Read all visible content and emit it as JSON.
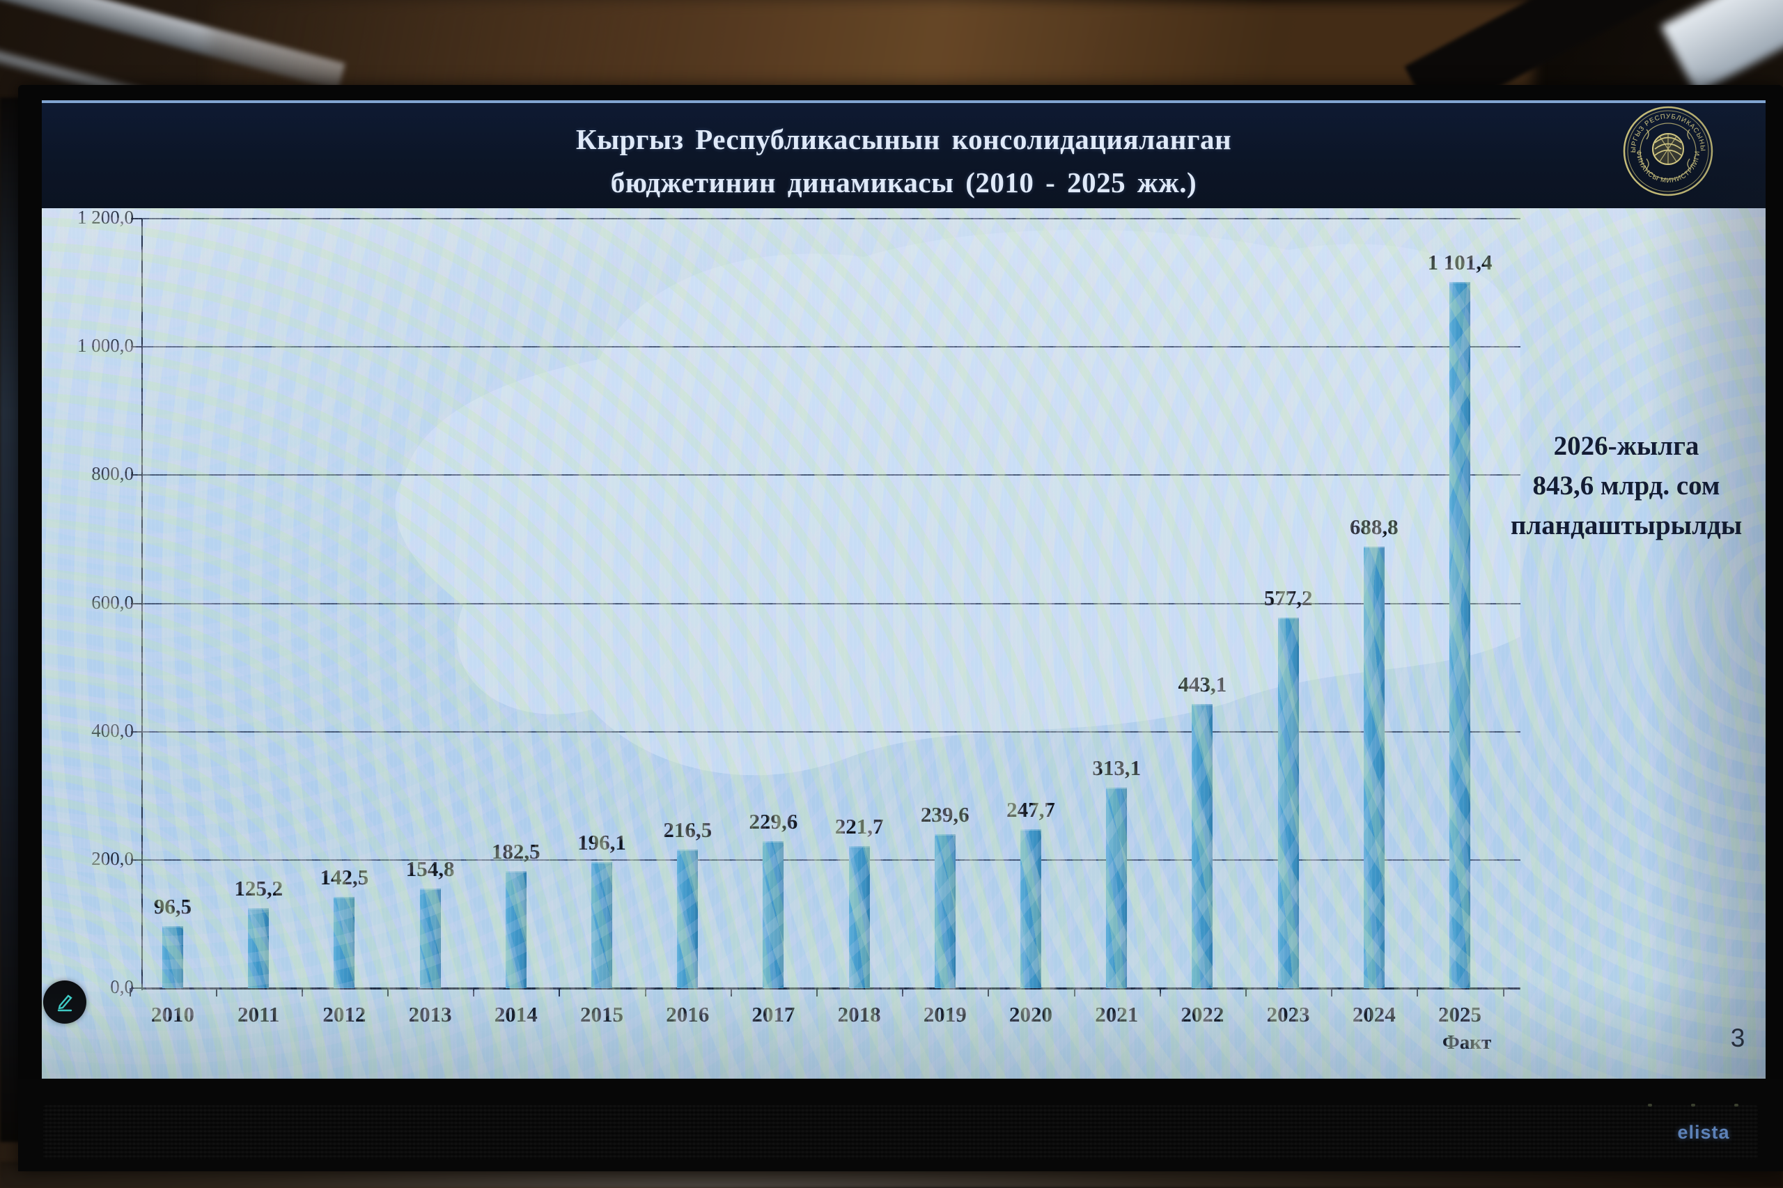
{
  "slide": {
    "title": {
      "line1": "Кыргыз Республикасынын консолидацияланган",
      "line2": "бюджетинин динамикасы (2010 - 2025 жж.)"
    },
    "logo": {
      "text_top": "КЫРГЫЗ РЕСПУБЛИКАСЫНЫН",
      "text_bottom": "ФИНАНСЫ МИНИСТРЛИГИ"
    },
    "annotation": {
      "line1": "2026-жылга",
      "line2": "843,6 млрд. сом",
      "line3": "пландаштырылды"
    },
    "page_number": "3"
  },
  "tv": {
    "brand": "elista"
  },
  "icons": {
    "pencil": "pencil-annotate-icon"
  },
  "colors": {
    "bar": "#3f97c9",
    "bar_edge_light": "#5caeda",
    "bar_edge_dark": "#2e7cab",
    "title_band": "#0c1526",
    "title_text": "#dfe9f8",
    "grid": "#263654",
    "label_text": "#10151f",
    "logo_gold": "#cfc47c",
    "pencil_teal": "#3fd0c9"
  },
  "chart_data": {
    "type": "bar",
    "title": "Кыргыз Республикасынын консолидацияланган бюджетинин динамикасы (2010 - 2025 жж.)",
    "categories": [
      "2010",
      "2011",
      "2012",
      "2013",
      "2014",
      "2015",
      "2016",
      "2017",
      "2018",
      "2019",
      "2020",
      "2021",
      "2022",
      "2023",
      "2024",
      "2025"
    ],
    "values": [
      96.5,
      125.2,
      142.5,
      154.8,
      182.5,
      196.1,
      216.5,
      229.6,
      221.7,
      239.6,
      247.7,
      313.1,
      443.1,
      577.2,
      688.8,
      1101.4
    ],
    "value_labels": [
      "96,5",
      "125,2",
      "142,5",
      "154,8",
      "182,5",
      "196,1",
      "216,5",
      "229,6",
      "221,7",
      "239,6",
      "247,7",
      "313,1",
      "443,1",
      "577,2",
      "688,8",
      "1 101,4"
    ],
    "last_category_note": "Факт",
    "ylim": [
      0,
      1200
    ],
    "yticks": [
      {
        "v": 0,
        "label": "0,0"
      },
      {
        "v": 200,
        "label": "200,0"
      },
      {
        "v": 400,
        "label": "400,0"
      },
      {
        "v": 600,
        "label": "600,0"
      },
      {
        "v": 800,
        "label": "800,0"
      },
      {
        "v": 1000,
        "label": "1 000,0"
      },
      {
        "v": 1200,
        "label": "1 200,0"
      }
    ],
    "grid": true,
    "legend": null,
    "xlabel": "",
    "ylabel": ""
  }
}
